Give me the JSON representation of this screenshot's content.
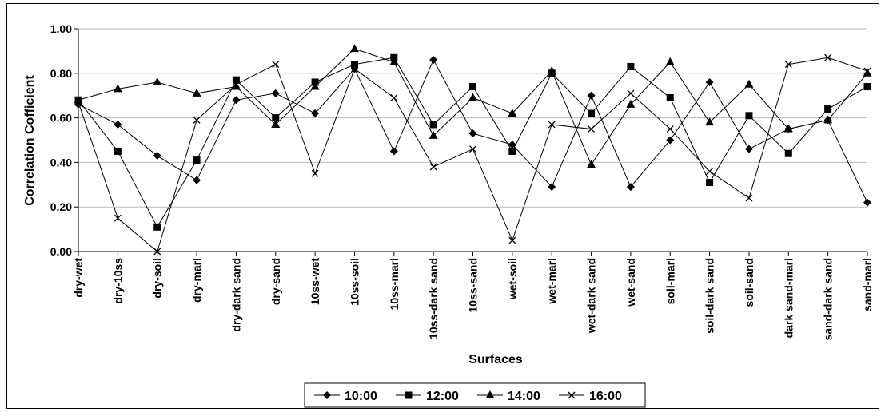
{
  "chart_data": {
    "type": "line",
    "title": "",
    "xlabel": "Surfaces",
    "ylabel": "Correlation Cofficient",
    "ylim": [
      0,
      1
    ],
    "yticks": [
      "0.00",
      "0.20",
      "0.40",
      "0.60",
      "0.80",
      "1.00"
    ],
    "grid": "horizontal",
    "legend_position": "bottom",
    "categories": [
      "dry-wet",
      "dry-10ss",
      "dry-soil",
      "dry-marl",
      "dry-dark sand",
      "dry-sand",
      "10ss-wet",
      "10ss-soil",
      "10ss-marl",
      "10ss-dark sand",
      "10ss-sand",
      "wet-soil",
      "wet-marl",
      "wet-dark sand",
      "wet-sand",
      "soil-marl",
      "soil-dark sand",
      "soil-sand",
      "dark sand-marl",
      "sand-dark sand",
      "sand-marl"
    ],
    "series": [
      {
        "name": "10:00",
        "marker": "diamond",
        "values": [
          0.66,
          0.57,
          0.43,
          0.32,
          0.68,
          0.71,
          0.62,
          0.82,
          0.45,
          0.86,
          0.53,
          0.48,
          0.29,
          0.7,
          0.29,
          0.5,
          0.76,
          0.46,
          0.55,
          0.59,
          0.22
        ]
      },
      {
        "name": "12:00",
        "marker": "square",
        "values": [
          0.68,
          0.45,
          0.11,
          0.41,
          0.77,
          0.6,
          0.76,
          0.84,
          0.87,
          0.57,
          0.74,
          0.45,
          0.8,
          0.62,
          0.83,
          0.69,
          0.31,
          0.61,
          0.44,
          0.64,
          0.74
        ]
      },
      {
        "name": "14:00",
        "marker": "triangle",
        "values": [
          0.68,
          0.73,
          0.76,
          0.71,
          0.74,
          0.57,
          0.74,
          0.91,
          0.85,
          0.52,
          0.69,
          0.62,
          0.81,
          0.39,
          0.66,
          0.85,
          0.58,
          0.75,
          0.55,
          0.59,
          0.8
        ]
      },
      {
        "name": "16:00",
        "marker": "x",
        "values": [
          0.67,
          0.15,
          0.0,
          0.59,
          0.75,
          0.84,
          0.35,
          0.82,
          0.69,
          0.38,
          0.46,
          0.05,
          0.57,
          0.55,
          0.71,
          0.55,
          0.36,
          0.24,
          0.84,
          0.87,
          0.81
        ]
      }
    ]
  }
}
